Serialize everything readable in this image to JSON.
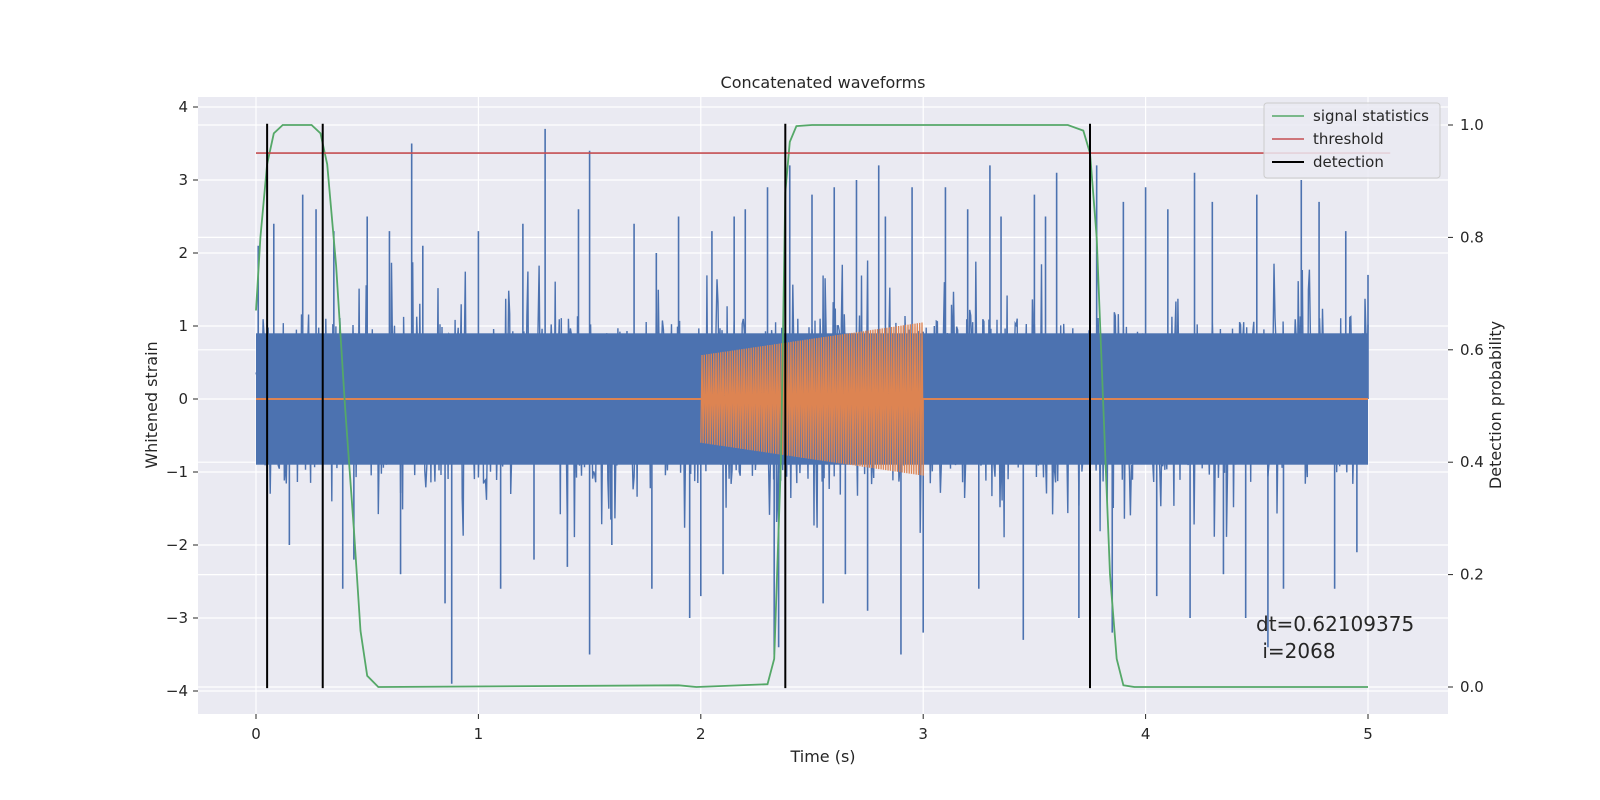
{
  "chart_data": {
    "type": "line",
    "title": "Concatenated waveforms",
    "xlabel": "Time (s)",
    "ylabel": "Whitened strain",
    "y2label": "Detection probability",
    "xlim": [
      -0.25,
      5.35
    ],
    "ylim": [
      -4.35,
      4.13
    ],
    "y2lim": [
      -0.047,
      1.03
    ],
    "xticks": [
      0,
      1,
      2,
      3,
      4,
      5
    ],
    "yticks": [
      -4,
      -3,
      -2,
      -1,
      0,
      1,
      2,
      3,
      4
    ],
    "y2ticks": [
      0.0,
      0.2,
      0.4,
      0.6,
      0.8,
      1.0
    ],
    "grid": true,
    "legend_position": "top-right",
    "colors": {
      "background": "#eaeaf2",
      "grid": "#ffffff",
      "strain": "#4c72b0",
      "injection": "#dd8452",
      "signal_statistics": "#55a868",
      "threshold": "#c44e52",
      "detection": "#000000"
    },
    "series": [
      {
        "name": "",
        "axis": "left",
        "kind": "noise",
        "x_range": [
          0,
          5
        ],
        "core_amplitude": 0.9,
        "peaks": [
          [
            0.01,
            2.1
          ],
          [
            0.05,
            -2.3
          ],
          [
            0.08,
            2.4
          ],
          [
            0.15,
            -2.0
          ],
          [
            0.21,
            2.8
          ],
          [
            0.27,
            2.6
          ],
          [
            0.3,
            -1.8
          ],
          [
            0.35,
            2.3
          ],
          [
            0.39,
            -2.6
          ],
          [
            0.44,
            -2.2
          ],
          [
            0.5,
            2.5
          ],
          [
            0.6,
            2.3
          ],
          [
            0.65,
            -2.4
          ],
          [
            0.7,
            3.5
          ],
          [
            0.75,
            2.1
          ],
          [
            0.85,
            -2.8
          ],
          [
            0.88,
            -3.9
          ],
          [
            1.0,
            2.3
          ],
          [
            1.1,
            -2.6
          ],
          [
            1.2,
            2.4
          ],
          [
            1.25,
            -2.2
          ],
          [
            1.3,
            3.7
          ],
          [
            1.4,
            -2.3
          ],
          [
            1.45,
            2.6
          ],
          [
            1.5,
            3.4
          ],
          [
            1.5,
            -3.5
          ],
          [
            1.6,
            -2.0
          ],
          [
            1.7,
            2.4
          ],
          [
            1.78,
            -2.6
          ],
          [
            1.8,
            2.0
          ],
          [
            1.9,
            2.5
          ],
          [
            1.95,
            -3.0
          ],
          [
            2.0,
            -2.7
          ],
          [
            2.05,
            2.3
          ],
          [
            2.1,
            -2.4
          ],
          [
            2.15,
            2.5
          ],
          [
            2.2,
            2.6
          ],
          [
            2.3,
            2.9
          ],
          [
            2.33,
            -3.5
          ],
          [
            2.35,
            -3.4
          ],
          [
            2.4,
            3.2
          ],
          [
            2.5,
            2.8
          ],
          [
            2.55,
            -2.8
          ],
          [
            2.6,
            2.9
          ],
          [
            2.65,
            -2.4
          ],
          [
            2.7,
            3.0
          ],
          [
            2.75,
            -2.9
          ],
          [
            2.8,
            3.2
          ],
          [
            2.83,
            2.5
          ],
          [
            2.9,
            -3.5
          ],
          [
            2.95,
            2.9
          ],
          [
            3.0,
            -3.2
          ],
          [
            3.1,
            2.9
          ],
          [
            3.2,
            2.6
          ],
          [
            3.25,
            -2.6
          ],
          [
            3.3,
            3.2
          ],
          [
            3.35,
            2.5
          ],
          [
            3.45,
            -3.3
          ],
          [
            3.5,
            2.8
          ],
          [
            3.55,
            2.5
          ],
          [
            3.6,
            3.1
          ],
          [
            3.7,
            -3.0
          ],
          [
            3.75,
            2.6
          ],
          [
            3.78,
            3.2
          ],
          [
            3.85,
            -3.2
          ],
          [
            3.9,
            2.7
          ],
          [
            4.0,
            2.9
          ],
          [
            4.05,
            -2.7
          ],
          [
            4.1,
            2.6
          ],
          [
            4.2,
            -3.0
          ],
          [
            4.22,
            3.1
          ],
          [
            4.3,
            2.7
          ],
          [
            4.35,
            -2.4
          ],
          [
            4.45,
            -3.0
          ],
          [
            4.5,
            2.8
          ],
          [
            4.55,
            -3.4
          ],
          [
            4.62,
            -2.6
          ],
          [
            4.7,
            3.0
          ],
          [
            4.78,
            2.7
          ],
          [
            4.85,
            -2.6
          ],
          [
            4.9,
            2.3
          ],
          [
            4.95,
            -2.1
          ],
          [
            5.0,
            1.7
          ]
        ]
      },
      {
        "name": "",
        "axis": "left",
        "kind": "chirp",
        "x_range": [
          2,
          3
        ],
        "amplitude_start": 0.6,
        "amplitude_end": 1.05,
        "cycles": 95
      },
      {
        "name": "signal statistics",
        "axis": "right",
        "kind": "line",
        "points": [
          [
            0.0,
            0.67
          ],
          [
            0.02,
            0.8
          ],
          [
            0.05,
            0.93
          ],
          [
            0.08,
            0.985
          ],
          [
            0.12,
            1.0
          ],
          [
            0.25,
            1.0
          ],
          [
            0.29,
            0.985
          ],
          [
            0.32,
            0.93
          ],
          [
            0.36,
            0.75
          ],
          [
            0.4,
            0.5
          ],
          [
            0.44,
            0.28
          ],
          [
            0.47,
            0.1
          ],
          [
            0.5,
            0.02
          ],
          [
            0.55,
            0.0
          ],
          [
            1.9,
            0.003
          ],
          [
            1.98,
            0.0
          ],
          [
            2.3,
            0.005
          ],
          [
            2.33,
            0.05
          ],
          [
            2.36,
            0.4
          ],
          [
            2.38,
            0.88
          ],
          [
            2.4,
            0.97
          ],
          [
            2.43,
            0.998
          ],
          [
            2.5,
            1.0
          ],
          [
            3.65,
            1.0
          ],
          [
            3.72,
            0.99
          ],
          [
            3.75,
            0.95
          ],
          [
            3.78,
            0.8
          ],
          [
            3.81,
            0.5
          ],
          [
            3.84,
            0.2
          ],
          [
            3.87,
            0.05
          ],
          [
            3.9,
            0.003
          ],
          [
            3.95,
            0.0
          ],
          [
            5.0,
            0.0
          ]
        ]
      },
      {
        "name": "threshold",
        "axis": "right",
        "kind": "hline",
        "x_range": [
          0,
          5.1
        ],
        "value": 0.95
      },
      {
        "name": "detection",
        "axis": "left",
        "kind": "vlines",
        "x": [
          0.05,
          0.3,
          2.38,
          3.75
        ],
        "y_range": [
          -3.96,
          3.77
        ]
      }
    ],
    "annotation": {
      "line1": "dt=0.62109375",
      "line2": " i=2068"
    }
  }
}
